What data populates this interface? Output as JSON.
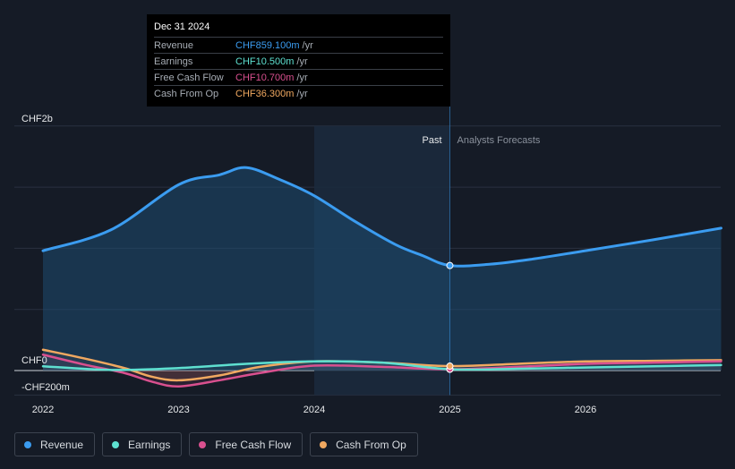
{
  "chart_data": {
    "type": "line",
    "y_axis": {
      "top_label": "CHF2b",
      "zero_label": "CHF0",
      "neg_label": "-CHF200m",
      "ylim": [
        -200,
        2000
      ],
      "unit": "CHF m"
    },
    "x_ticks": [
      {
        "label": "2022",
        "x": 2022.0
      },
      {
        "label": "2023",
        "x": 2023.0
      },
      {
        "label": "2024",
        "x": 2024.0
      },
      {
        "label": "2025",
        "x": 2025.0
      },
      {
        "label": "2026",
        "x": 2026.0
      }
    ],
    "past_label": "Past",
    "forecast_label": "Analysts Forecasts",
    "past_region": [
      2024.0,
      2025.0
    ],
    "divider_x": 2025.0,
    "series": [
      {
        "name": "Revenue",
        "color": "#3b9cf0",
        "filled": true,
        "x": [
          2022.0,
          2022.5,
          2023.0,
          2023.3,
          2023.5,
          2023.75,
          2024.0,
          2024.3,
          2024.6,
          2024.8,
          2025.0,
          2025.3,
          2025.6,
          2026.0,
          2026.5,
          2027.0
        ],
        "values": [
          980,
          1150,
          1520,
          1600,
          1660,
          1560,
          1430,
          1220,
          1030,
          940,
          859,
          870,
          910,
          980,
          1070,
          1165
        ]
      },
      {
        "name": "Earnings",
        "color": "#5ee0d0",
        "filled": false,
        "x": [
          2022.0,
          2022.5,
          2023.0,
          2023.5,
          2024.0,
          2024.5,
          2025.0,
          2025.5,
          2026.0,
          2026.5,
          2027.0
        ],
        "values": [
          35,
          5,
          20,
          55,
          75,
          65,
          10.5,
          15,
          25,
          35,
          45
        ]
      },
      {
        "name": "Free Cash Flow",
        "color": "#d9508f",
        "filled": false,
        "x": [
          2022.0,
          2022.3,
          2022.6,
          2022.8,
          2023.0,
          2023.3,
          2023.6,
          2024.0,
          2024.5,
          2025.0,
          2025.5,
          2026.0,
          2026.5,
          2027.0
        ],
        "values": [
          130,
          50,
          -20,
          -90,
          -130,
          -80,
          -20,
          40,
          30,
          10.7,
          30,
          55,
          65,
          75
        ]
      },
      {
        "name": "Cash From Op",
        "color": "#f0a860",
        "filled": false,
        "x": [
          2022.0,
          2022.3,
          2022.6,
          2022.8,
          2023.0,
          2023.3,
          2023.6,
          2024.0,
          2024.5,
          2025.0,
          2025.5,
          2026.0,
          2026.5,
          2027.0
        ],
        "values": [
          170,
          100,
          20,
          -50,
          -80,
          -40,
          30,
          75,
          65,
          36.3,
          55,
          75,
          80,
          85
        ]
      }
    ]
  },
  "tooltip": {
    "date": "Dec 31 2024",
    "rows": [
      {
        "label": "Revenue",
        "value": "CHF859.100m",
        "unit": "/yr",
        "color": "#3b9cf0"
      },
      {
        "label": "Earnings",
        "value": "CHF10.500m",
        "unit": "/yr",
        "color": "#5ee0d0"
      },
      {
        "label": "Free Cash Flow",
        "value": "CHF10.700m",
        "unit": "/yr",
        "color": "#d9508f"
      },
      {
        "label": "Cash From Op",
        "value": "CHF36.300m",
        "unit": "/yr",
        "color": "#f0a860"
      }
    ]
  },
  "legend": [
    {
      "label": "Revenue",
      "color": "#3b9cf0"
    },
    {
      "label": "Earnings",
      "color": "#5ee0d0"
    },
    {
      "label": "Free Cash Flow",
      "color": "#d9508f"
    },
    {
      "label": "Cash From Op",
      "color": "#f0a860"
    }
  ]
}
